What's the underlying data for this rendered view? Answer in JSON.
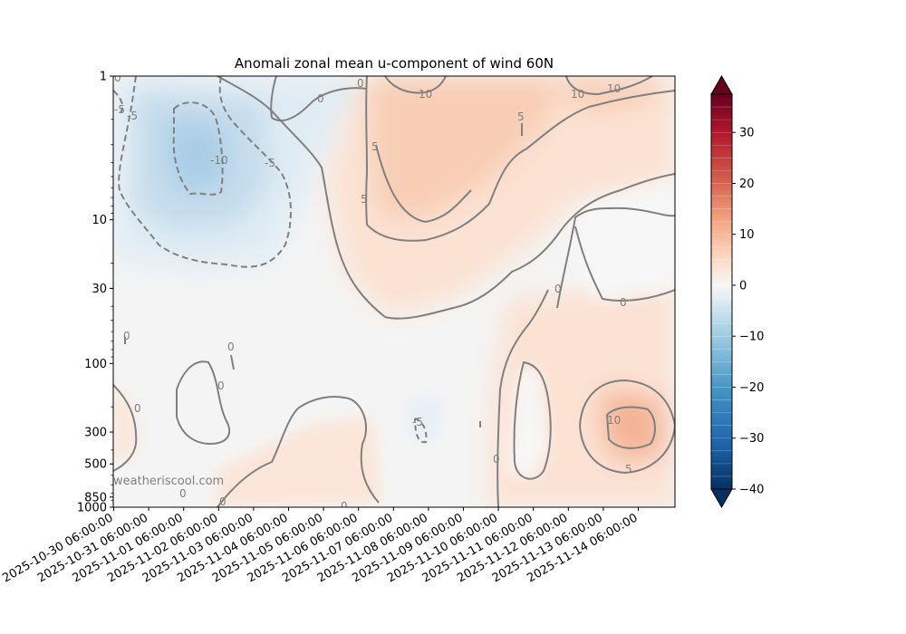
{
  "chart_data": {
    "type": "heatmap",
    "title": "Anomali zonal mean u-component of wind 60N",
    "xlabel": "",
    "ylabel": "",
    "y_scale": "log",
    "y_inverted": true,
    "ylim": [
      1000,
      1
    ],
    "y_ticks": [
      "1",
      "10",
      "30",
      "100",
      "300",
      "500",
      "850",
      "1000"
    ],
    "x_ticks": [
      "2025-10-30 06:00:00",
      "2025-10-31 06:00:00",
      "2025-11-01 06:00:00",
      "2025-11-02 06:00:00",
      "2025-11-03 06:00:00",
      "2025-11-04 06:00:00",
      "2025-11-05 06:00:00",
      "2025-11-06 06:00:00",
      "2025-11-07 06:00:00",
      "2025-11-08 06:00:00",
      "2025-11-09 06:00:00",
      "2025-11-10 06:00:00",
      "2025-11-11 06:00:00",
      "2025-11-12 06:00:00",
      "2025-11-13 06:00:00",
      "2025-11-14 06:00:00"
    ],
    "colorbar": {
      "min": -40,
      "max": 37.5,
      "ticks": [
        "30",
        "20",
        "10",
        "0",
        "−10",
        "−20",
        "−30",
        "−40"
      ],
      "colormap": "RdBu_r",
      "extend": "both"
    },
    "contour_levels": [
      -10,
      -5,
      0,
      5,
      10
    ],
    "contour_labels": [
      {
        "text": "0",
        "style": "neg"
      },
      {
        "text": "-5",
        "style": "neg"
      },
      {
        "text": "-5",
        "style": "neg"
      },
      {
        "text": "-10",
        "style": "neg"
      },
      {
        "text": "-5",
        "style": "neg"
      },
      {
        "text": "0"
      },
      {
        "text": "0"
      },
      {
        "text": "5"
      },
      {
        "text": "10"
      },
      {
        "text": "5"
      },
      {
        "text": "5"
      },
      {
        "text": "10"
      },
      {
        "text": "10"
      },
      {
        "text": "0"
      },
      {
        "text": "0"
      },
      {
        "text": "0"
      },
      {
        "text": "0"
      },
      {
        "text": "0"
      },
      {
        "text": "0"
      },
      {
        "text": "0"
      },
      {
        "text": "0"
      },
      {
        "text": "0"
      },
      {
        "text": "-5",
        "style": "neg"
      },
      {
        "text": "10"
      },
      {
        "text": "5"
      },
      {
        "text": "0"
      }
    ],
    "colors": {
      "neg_strong": "#2166ac",
      "neg_light": "#d1e5f0",
      "neutral": "#f7f7f7",
      "pos_light": "#fddbc7",
      "pos_strong": "#b2182b",
      "contour": "#808080"
    }
  },
  "watermark": "weatheriscool.com"
}
